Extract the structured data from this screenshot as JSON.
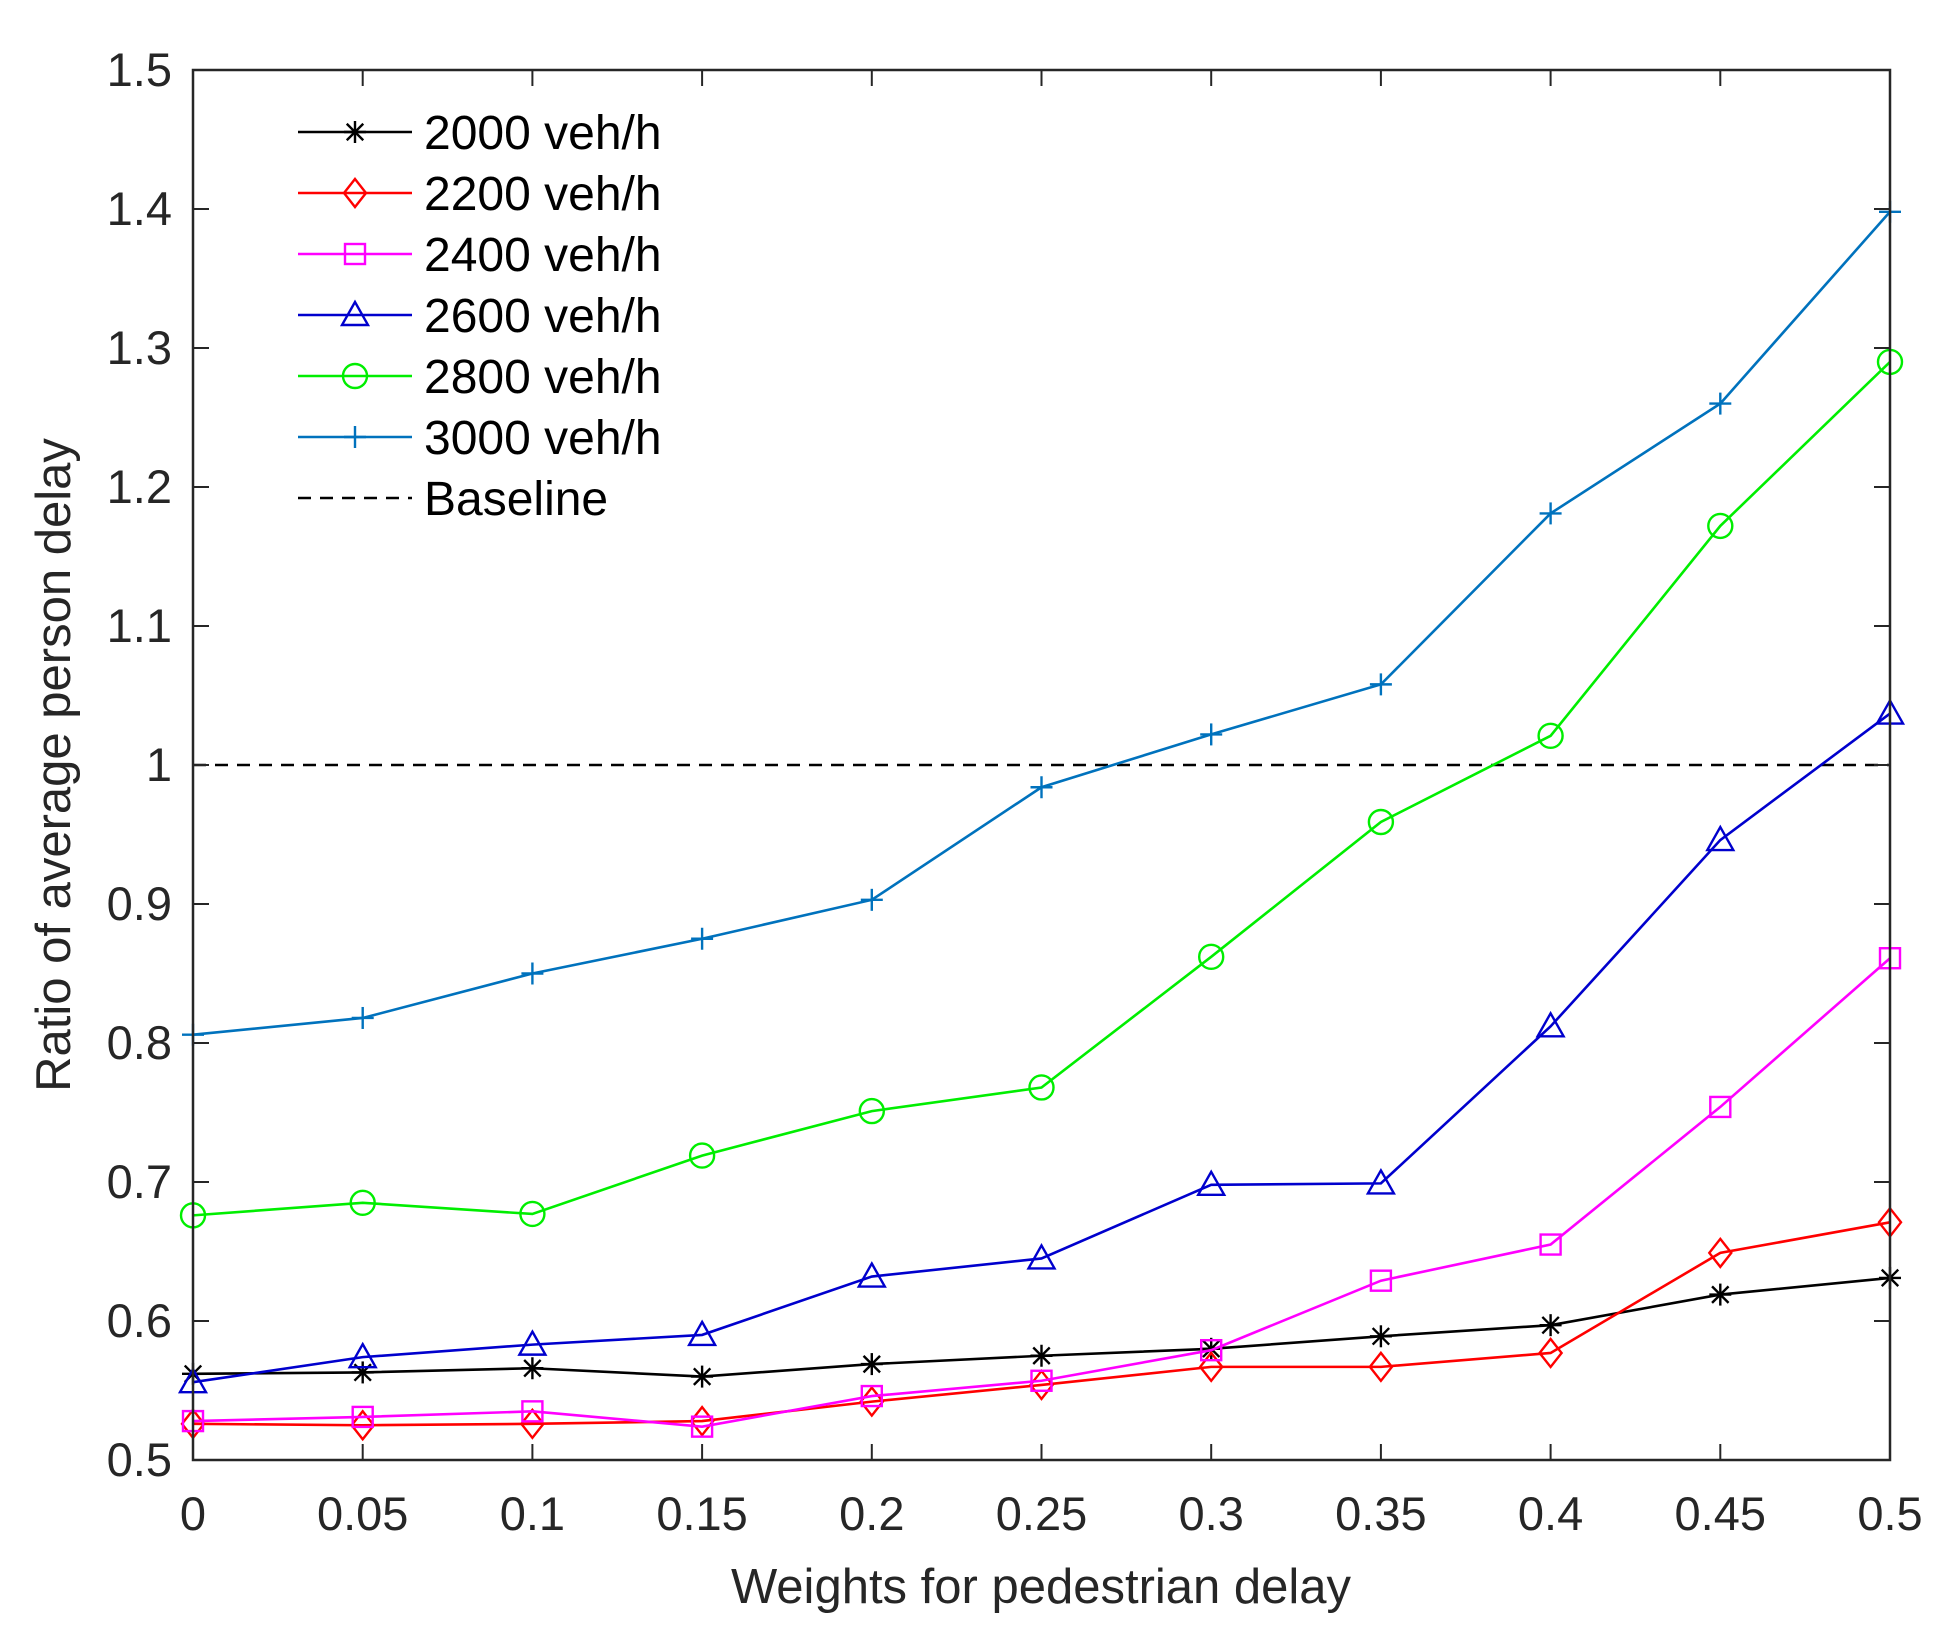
{
  "chart_data": {
    "type": "line",
    "title": "",
    "xlabel": "Weights for pedestrian delay",
    "ylabel": "Ratio of average person delay",
    "x": [
      0,
      0.05,
      0.1,
      0.15,
      0.2,
      0.25,
      0.3,
      0.35,
      0.4,
      0.45,
      0.5
    ],
    "xlim": [
      0,
      0.5
    ],
    "ylim": [
      0.5,
      1.5
    ],
    "xticks": [
      "0",
      "0.05",
      "0.1",
      "0.15",
      "0.2",
      "0.25",
      "0.3",
      "0.35",
      "0.4",
      "0.45",
      "0.5"
    ],
    "yticks": [
      "0.5",
      "0.6",
      "0.7",
      "0.8",
      "0.9",
      "1",
      "1.1",
      "1.2",
      "1.3",
      "1.4",
      "1.5"
    ],
    "grid": false,
    "legend_position": "top-left",
    "series": [
      {
        "name": "2000 veh/h",
        "color": "#000000",
        "marker": "asterisk",
        "values": [
          0.562,
          0.563,
          0.566,
          0.56,
          0.569,
          0.575,
          0.58,
          0.589,
          0.597,
          0.619,
          0.631
        ]
      },
      {
        "name": "2200 veh/h",
        "color": "#ff0000",
        "marker": "diamond",
        "values": [
          0.526,
          0.525,
          0.526,
          0.528,
          0.542,
          0.554,
          0.567,
          0.567,
          0.577,
          0.649,
          0.671
        ]
      },
      {
        "name": "2400 veh/h",
        "color": "#ff00ff",
        "marker": "square",
        "values": [
          0.528,
          0.531,
          0.535,
          0.524,
          0.546,
          0.557,
          0.579,
          0.629,
          0.655,
          0.754,
          0.861
        ]
      },
      {
        "name": "2600 veh/h",
        "color": "#0000cd",
        "marker": "triangle",
        "values": [
          0.556,
          0.574,
          0.583,
          0.59,
          0.632,
          0.645,
          0.698,
          0.699,
          0.812,
          0.946,
          1.037
        ]
      },
      {
        "name": "2800 veh/h",
        "color": "#00ee00",
        "marker": "circle",
        "values": [
          0.676,
          0.685,
          0.677,
          0.719,
          0.751,
          0.768,
          0.862,
          0.959,
          1.021,
          1.172,
          1.29
        ]
      },
      {
        "name": "3000 veh/h",
        "color": "#0072bd",
        "marker": "plus",
        "values": [
          0.806,
          0.818,
          0.85,
          0.875,
          0.903,
          0.984,
          1.022,
          1.058,
          1.181,
          1.26,
          1.398
        ]
      }
    ],
    "baseline": {
      "name": "Baseline",
      "value": 1.0,
      "color": "#000000",
      "style": "dashed"
    }
  }
}
